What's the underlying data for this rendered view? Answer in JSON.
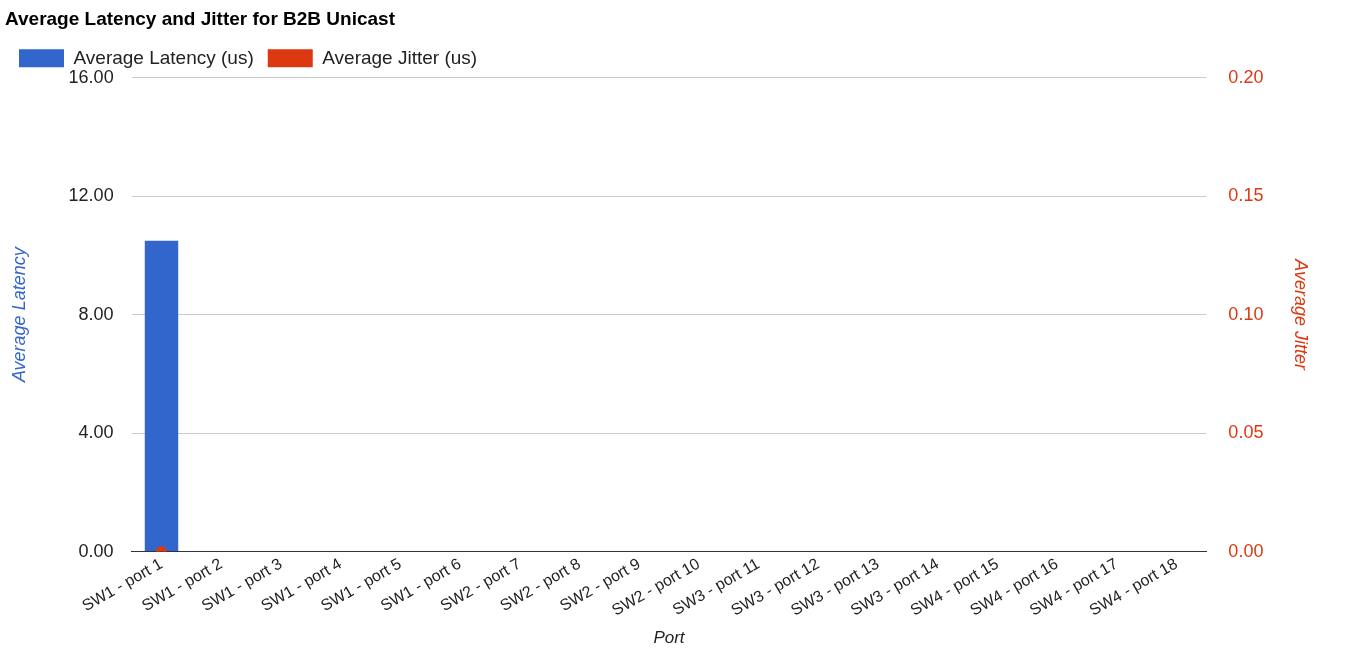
{
  "chart_data": {
    "type": "bar",
    "title": "Average Latency and Jitter for B2B Unicast",
    "categories": [
      "SW1 - port 1",
      "SW1 - port 2",
      "SW1 - port 3",
      "SW1 - port 4",
      "SW1 - port 5",
      "SW1 - port 6",
      "SW2 - port 7",
      "SW2 - port 8",
      "SW2 - port 9",
      "SW2 - port 10",
      "SW3 - port 11",
      "SW3 - port 12",
      "SW3 - port 13",
      "SW3 - port 14",
      "SW4 - port 15",
      "SW4 - port 16",
      "SW4 - port 17",
      "SW4 - port 18"
    ],
    "series": [
      {
        "name": "Average Latency (us)",
        "color": "#3366cc",
        "values": [
          10.5,
          0,
          0,
          0,
          0,
          0,
          0,
          0,
          0,
          0,
          0,
          0,
          0,
          0,
          0,
          0,
          0,
          0
        ]
      },
      {
        "name": "Average Jitter (us)",
        "type": "line",
        "axis": "y2",
        "color": "#dc3912",
        "values": [
          0,
          null,
          null,
          null,
          null,
          null,
          null,
          null,
          null,
          null,
          null,
          null,
          null,
          null,
          null,
          null,
          null,
          null
        ]
      }
    ],
    "xlabel": "Port",
    "ylabel": "Average Latency",
    "y2label": "Average Jitter",
    "ylim": [
      0,
      16
    ],
    "yticks": [
      {
        "value": 0,
        "label": "0.00"
      },
      {
        "value": 4,
        "label": "4.00"
      },
      {
        "value": 8,
        "label": "8.00"
      },
      {
        "value": 12,
        "label": "12.00"
      },
      {
        "value": 16,
        "label": "16.00"
      }
    ],
    "y2lim": [
      0,
      0.2
    ],
    "y2ticks": [
      {
        "value": 0,
        "label": "0.00"
      },
      {
        "value": 0.05,
        "label": "0.05"
      },
      {
        "value": 0.1,
        "label": "0.10"
      },
      {
        "value": 0.15,
        "label": "0.15"
      },
      {
        "value": 0.2,
        "label": "0.20"
      }
    ],
    "grid": "y",
    "legend": "top left",
    "marker": "circle"
  }
}
